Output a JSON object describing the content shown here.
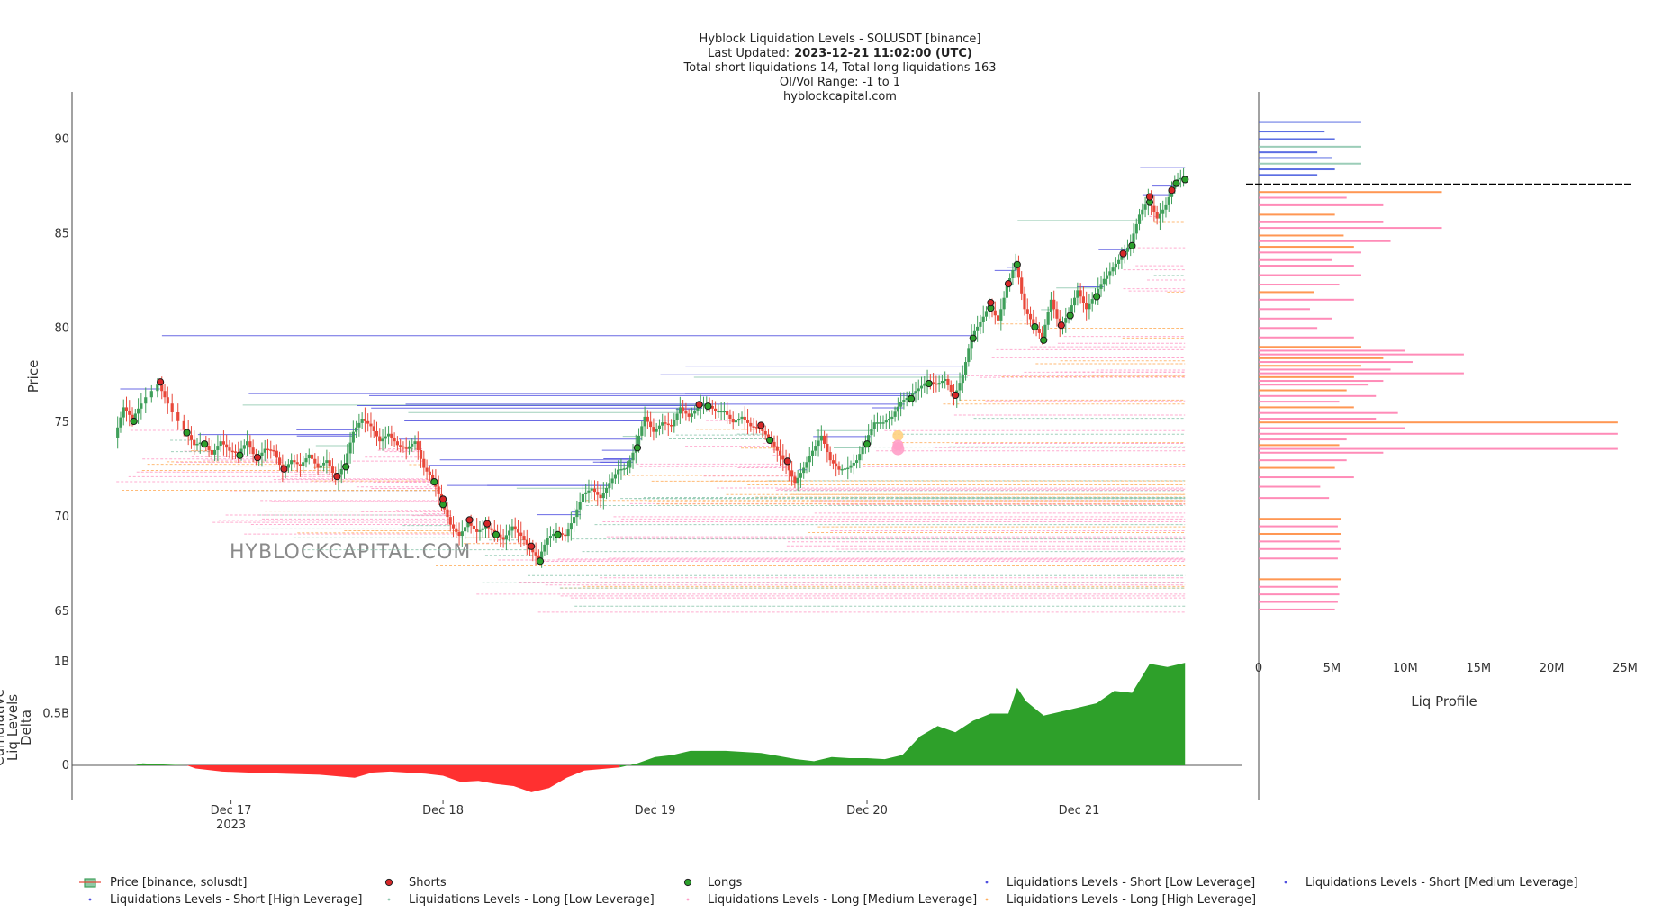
{
  "title": {
    "line1": "Hyblock Liquidation Levels - SOLUSDT [binance]",
    "line2_label": "Last Updated:",
    "line2_value": "2023-12-21 11:02:00 (UTC)",
    "line3": "Total short liquidations 14, Total long liquidations 163",
    "line4": "OI/Vol Range: -1 to 1",
    "line5": "hyblockcapital.com"
  },
  "watermark": "HYBLOCKCAPITAL.COM",
  "colors": {
    "price_up": "#3f9f5a",
    "price_down": "#e8483a",
    "shorts": "#d62728",
    "longs": "#2ca02c",
    "short_liq": "#5050e0",
    "long_liq_low": "#90c8b0",
    "long_liq_medium": "#ff9ec8",
    "long_liq_high": "#ffb060",
    "delta_pos": "#2ea02a",
    "delta_neg": "#ff3030",
    "profile_orange": "#ff8c40",
    "profile_pink": "#ff80b0",
    "profile_blue": "#4a5ee0",
    "profile_teal": "#90c8b0"
  },
  "chart_data": [
    {
      "type": "line",
      "name": "Price",
      "ylabel": "Price",
      "ylim": [
        64,
        92.5
      ],
      "yticks": [
        65,
        70,
        75,
        80,
        85,
        90
      ],
      "xticks": [
        {
          "t": 0,
          "label": "Dec 17",
          "sublabel": "2023"
        },
        {
          "t": 24,
          "label": "Dec 18",
          "sublabel": ""
        },
        {
          "t": 48,
          "label": "Dec 19",
          "sublabel": ""
        },
        {
          "t": 72,
          "label": "Dec 20",
          "sublabel": ""
        },
        {
          "t": 96,
          "label": "Dec 21",
          "sublabel": ""
        }
      ],
      "xrange": [
        -18.0,
        114.5
      ],
      "price_series": [
        [
          -13,
          74.2
        ],
        [
          -12,
          75.8
        ],
        [
          -11,
          75.2
        ],
        [
          -10,
          76.0
        ],
        [
          -8,
          77.0
        ],
        [
          -7,
          76.0
        ],
        [
          -5,
          74.6
        ],
        [
          -4,
          73.8
        ],
        [
          -3,
          74.0
        ],
        [
          -2,
          73.3
        ],
        [
          -1,
          74.0
        ],
        [
          0,
          73.5
        ],
        [
          1,
          73.4
        ],
        [
          2,
          74.0
        ],
        [
          3,
          73.0
        ],
        [
          4,
          73.6
        ],
        [
          5,
          73.5
        ],
        [
          6,
          72.4
        ],
        [
          7,
          73.0
        ],
        [
          8,
          72.7
        ],
        [
          9,
          73.3
        ],
        [
          10,
          72.6
        ],
        [
          11,
          73.0
        ],
        [
          12,
          72.0
        ],
        [
          13,
          72.8
        ],
        [
          14,
          74.5
        ],
        [
          15,
          75.2
        ],
        [
          16,
          74.8
        ],
        [
          17,
          74.0
        ],
        [
          18,
          74.4
        ],
        [
          19,
          73.8
        ],
        [
          20,
          73.6
        ],
        [
          21,
          74.0
        ],
        [
          22,
          72.6
        ],
        [
          23,
          72.0
        ],
        [
          24,
          70.8
        ],
        [
          25,
          69.6
        ],
        [
          26,
          69.0
        ],
        [
          27,
          69.7
        ],
        [
          28,
          69.2
        ],
        [
          29,
          69.5
        ],
        [
          30,
          69.2
        ],
        [
          31,
          68.8
        ],
        [
          32,
          69.5
        ],
        [
          33,
          69.0
        ],
        [
          34,
          68.3
        ],
        [
          35,
          67.8
        ],
        [
          36,
          68.9
        ],
        [
          37,
          69.2
        ],
        [
          38,
          69.0
        ],
        [
          39,
          70.0
        ],
        [
          40,
          71.2
        ],
        [
          41,
          71.5
        ],
        [
          42,
          71.0
        ],
        [
          43,
          71.8
        ],
        [
          44,
          72.5
        ],
        [
          45,
          72.6
        ],
        [
          46,
          73.8
        ],
        [
          47,
          75.3
        ],
        [
          48,
          74.5
        ],
        [
          49,
          75.0
        ],
        [
          50,
          74.8
        ],
        [
          51,
          75.8
        ],
        [
          52,
          75.3
        ],
        [
          53,
          75.8
        ],
        [
          54,
          76.0
        ],
        [
          55,
          75.6
        ],
        [
          56,
          75.6
        ],
        [
          57,
          75.0
        ],
        [
          58,
          75.3
        ],
        [
          59,
          74.8
        ],
        [
          60,
          74.7
        ],
        [
          61,
          74.2
        ],
        [
          62,
          73.5
        ],
        [
          63,
          72.8
        ],
        [
          64,
          71.8
        ],
        [
          65,
          72.6
        ],
        [
          66,
          73.5
        ],
        [
          67,
          74.3
        ],
        [
          68,
          73.0
        ],
        [
          69,
          72.5
        ],
        [
          70,
          72.6
        ],
        [
          71,
          73.0
        ],
        [
          72,
          74.0
        ],
        [
          73,
          75.0
        ],
        [
          74,
          75.0
        ],
        [
          75,
          75.3
        ],
        [
          76,
          76.1
        ],
        [
          77,
          76.4
        ],
        [
          78,
          76.8
        ],
        [
          79,
          77.2
        ],
        [
          80,
          77.0
        ],
        [
          81,
          77.3
        ],
        [
          82,
          76.3
        ],
        [
          83,
          77.5
        ],
        [
          84,
          79.6
        ],
        [
          85,
          80.3
        ],
        [
          86,
          81.2
        ],
        [
          87,
          80.4
        ],
        [
          88,
          82.2
        ],
        [
          89,
          83.5
        ],
        [
          90,
          81.0
        ],
        [
          91,
          80.2
        ],
        [
          92,
          79.5
        ],
        [
          93,
          81.5
        ],
        [
          94,
          80.0
        ],
        [
          95,
          80.8
        ],
        [
          96,
          82.0
        ],
        [
          97,
          81.0
        ],
        [
          98,
          81.8
        ],
        [
          99,
          82.6
        ],
        [
          100,
          83.2
        ],
        [
          101,
          83.8
        ],
        [
          102,
          84.5
        ],
        [
          103,
          86.0
        ],
        [
          104,
          86.8
        ],
        [
          105,
          85.8
        ],
        [
          106,
          86.5
        ],
        [
          107,
          87.8
        ],
        [
          108,
          88.0
        ]
      ],
      "shorts_x": [
        -8,
        3,
        6,
        12,
        24,
        27,
        29,
        34,
        53,
        60,
        63,
        82,
        86,
        88,
        94,
        101,
        104,
        106.5
      ],
      "longs_x": [
        -11,
        -5,
        -3,
        1,
        13,
        23,
        24,
        30,
        35,
        37,
        46,
        54,
        61,
        72,
        77,
        79,
        84,
        86,
        89,
        91,
        92,
        95,
        98,
        102,
        104,
        107,
        108
      ],
      "big_markers": [
        {
          "x": 75.5,
          "y": 74.3,
          "r": 6,
          "c": "#ffd080"
        },
        {
          "x": 75.5,
          "y": 73.8,
          "r": 6,
          "c": "#ff9ec8"
        },
        {
          "x": 75.5,
          "y": 73.6,
          "r": 7,
          "c": "#ff9ec8"
        }
      ]
    },
    {
      "type": "area",
      "name": "Cumulative Liq Levels Delta",
      "ylabel": "Cumulative Liq Levels Delta",
      "ylim": [
        -0.28,
        1.05
      ],
      "ytick_labels": [
        "1B",
        "0.5B",
        "0"
      ],
      "yticks": [
        1.0,
        0.5,
        0.0
      ],
      "delta_series": [
        [
          -13,
          0.0
        ],
        [
          -11,
          0.0
        ],
        [
          -10,
          0.02
        ],
        [
          -8,
          0.01
        ],
        [
          -5,
          0.0
        ],
        [
          -4,
          -0.03
        ],
        [
          -1,
          -0.06
        ],
        [
          2,
          -0.07
        ],
        [
          6,
          -0.08
        ],
        [
          10,
          -0.09
        ],
        [
          14,
          -0.12
        ],
        [
          16,
          -0.07
        ],
        [
          18,
          -0.06
        ],
        [
          22,
          -0.08
        ],
        [
          24,
          -0.1
        ],
        [
          26,
          -0.16
        ],
        [
          28,
          -0.15
        ],
        [
          30,
          -0.18
        ],
        [
          32,
          -0.2
        ],
        [
          34,
          -0.26
        ],
        [
          36,
          -0.22
        ],
        [
          38,
          -0.12
        ],
        [
          40,
          -0.05
        ],
        [
          44,
          -0.02
        ],
        [
          46,
          0.02
        ],
        [
          48,
          0.08
        ],
        [
          50,
          0.1
        ],
        [
          52,
          0.14
        ],
        [
          56,
          0.14
        ],
        [
          60,
          0.12
        ],
        [
          62,
          0.09
        ],
        [
          64,
          0.06
        ],
        [
          66,
          0.04
        ],
        [
          68,
          0.08
        ],
        [
          70,
          0.07
        ],
        [
          72,
          0.07
        ],
        [
          74,
          0.06
        ],
        [
          76,
          0.1
        ],
        [
          78,
          0.28
        ],
        [
          80,
          0.38
        ],
        [
          82,
          0.32
        ],
        [
          84,
          0.43
        ],
        [
          86,
          0.5
        ],
        [
          88,
          0.5
        ],
        [
          89,
          0.75
        ],
        [
          90,
          0.62
        ],
        [
          92,
          0.48
        ],
        [
          94,
          0.52
        ],
        [
          96,
          0.56
        ],
        [
          98,
          0.6
        ],
        [
          100,
          0.72
        ],
        [
          102,
          0.7
        ],
        [
          104,
          0.98
        ],
        [
          106,
          0.95
        ],
        [
          108,
          0.99
        ]
      ]
    },
    {
      "type": "bar",
      "name": "Liq Profile",
      "xlabel": "Liq Profile",
      "xlim": [
        0,
        25000000
      ],
      "xticks": [
        0,
        5000000,
        10000000,
        15000000,
        20000000,
        25000000
      ],
      "xtick_labels": [
        "0",
        "5M",
        "10M",
        "15M",
        "20M",
        "25M"
      ],
      "current_price": 87.6,
      "bars": [
        {
          "y": 90.9,
          "v": 7000000,
          "c": "blue"
        },
        {
          "y": 90.4,
          "v": 4500000,
          "c": "blue"
        },
        {
          "y": 90.0,
          "v": 5200000,
          "c": "blue"
        },
        {
          "y": 89.6,
          "v": 7000000,
          "c": "teal"
        },
        {
          "y": 89.3,
          "v": 4000000,
          "c": "blue"
        },
        {
          "y": 89.0,
          "v": 5000000,
          "c": "blue"
        },
        {
          "y": 88.7,
          "v": 7000000,
          "c": "teal"
        },
        {
          "y": 88.4,
          "v": 5200000,
          "c": "blue"
        },
        {
          "y": 88.1,
          "v": 4000000,
          "c": "blue"
        },
        {
          "y": 87.2,
          "v": 12500000,
          "c": "orange"
        },
        {
          "y": 86.9,
          "v": 6000000,
          "c": "pink"
        },
        {
          "y": 86.5,
          "v": 8500000,
          "c": "pink"
        },
        {
          "y": 86.0,
          "v": 5200000,
          "c": "orange"
        },
        {
          "y": 85.6,
          "v": 8500000,
          "c": "pink"
        },
        {
          "y": 85.3,
          "v": 12500000,
          "c": "pink"
        },
        {
          "y": 84.9,
          "v": 5800000,
          "c": "orange"
        },
        {
          "y": 84.6,
          "v": 9000000,
          "c": "pink"
        },
        {
          "y": 84.3,
          "v": 6500000,
          "c": "orange"
        },
        {
          "y": 84.0,
          "v": 7000000,
          "c": "pink"
        },
        {
          "y": 83.6,
          "v": 5000000,
          "c": "pink"
        },
        {
          "y": 83.3,
          "v": 6500000,
          "c": "pink"
        },
        {
          "y": 82.8,
          "v": 7000000,
          "c": "pink"
        },
        {
          "y": 82.3,
          "v": 5500000,
          "c": "pink"
        },
        {
          "y": 81.9,
          "v": 3800000,
          "c": "orange"
        },
        {
          "y": 81.5,
          "v": 6500000,
          "c": "pink"
        },
        {
          "y": 81.0,
          "v": 3500000,
          "c": "pink"
        },
        {
          "y": 80.5,
          "v": 5000000,
          "c": "pink"
        },
        {
          "y": 80.0,
          "v": 4000000,
          "c": "pink"
        },
        {
          "y": 79.5,
          "v": 6500000,
          "c": "pink"
        },
        {
          "y": 79.0,
          "v": 7000000,
          "c": "orange"
        },
        {
          "y": 78.8,
          "v": 10000000,
          "c": "pink"
        },
        {
          "y": 78.6,
          "v": 14000000,
          "c": "pink"
        },
        {
          "y": 78.4,
          "v": 8500000,
          "c": "orange"
        },
        {
          "y": 78.2,
          "v": 10500000,
          "c": "pink"
        },
        {
          "y": 78.0,
          "v": 7000000,
          "c": "orange"
        },
        {
          "y": 77.8,
          "v": 9000000,
          "c": "pink"
        },
        {
          "y": 77.6,
          "v": 14000000,
          "c": "pink"
        },
        {
          "y": 77.4,
          "v": 6500000,
          "c": "orange"
        },
        {
          "y": 77.2,
          "v": 8500000,
          "c": "pink"
        },
        {
          "y": 77.0,
          "v": 7500000,
          "c": "pink"
        },
        {
          "y": 76.7,
          "v": 6000000,
          "c": "orange"
        },
        {
          "y": 76.4,
          "v": 8000000,
          "c": "pink"
        },
        {
          "y": 76.1,
          "v": 5500000,
          "c": "pink"
        },
        {
          "y": 75.8,
          "v": 6500000,
          "c": "orange"
        },
        {
          "y": 75.5,
          "v": 9500000,
          "c": "pink"
        },
        {
          "y": 75.2,
          "v": 8000000,
          "c": "pink"
        },
        {
          "y": 75.0,
          "v": 24500000,
          "c": "orange"
        },
        {
          "y": 74.7,
          "v": 10000000,
          "c": "pink"
        },
        {
          "y": 74.4,
          "v": 24500000,
          "c": "pink"
        },
        {
          "y": 74.1,
          "v": 6000000,
          "c": "pink"
        },
        {
          "y": 73.8,
          "v": 5500000,
          "c": "orange"
        },
        {
          "y": 73.6,
          "v": 24500000,
          "c": "pink"
        },
        {
          "y": 73.4,
          "v": 8500000,
          "c": "pink"
        },
        {
          "y": 73.0,
          "v": 6000000,
          "c": "pink"
        },
        {
          "y": 72.6,
          "v": 5200000,
          "c": "orange"
        },
        {
          "y": 72.1,
          "v": 6500000,
          "c": "pink"
        },
        {
          "y": 71.6,
          "v": 4200000,
          "c": "pink"
        },
        {
          "y": 71.0,
          "v": 4800000,
          "c": "pink"
        },
        {
          "y": 69.9,
          "v": 5600000,
          "c": "orange"
        },
        {
          "y": 69.5,
          "v": 5400000,
          "c": "pink"
        },
        {
          "y": 69.1,
          "v": 5600000,
          "c": "orange"
        },
        {
          "y": 68.7,
          "v": 5500000,
          "c": "pink"
        },
        {
          "y": 68.3,
          "v": 5600000,
          "c": "pink"
        },
        {
          "y": 67.8,
          "v": 5400000,
          "c": "pink"
        },
        {
          "y": 66.7,
          "v": 5600000,
          "c": "orange"
        },
        {
          "y": 66.3,
          "v": 5400000,
          "c": "pink"
        },
        {
          "y": 65.9,
          "v": 5500000,
          "c": "pink"
        },
        {
          "y": 65.5,
          "v": 5400000,
          "c": "pink"
        },
        {
          "y": 65.1,
          "v": 5200000,
          "c": "pink"
        }
      ]
    }
  ],
  "legend": [
    {
      "label": "Price [binance, solusdt]",
      "symbol": "candle"
    },
    {
      "label": "Shorts",
      "symbol": "dot-red"
    },
    {
      "label": "Longs",
      "symbol": "dot-green"
    },
    {
      "label": "Liquidations Levels - Short [Low Leverage]",
      "symbol": "tiny-blue"
    },
    {
      "label": "Liquidations Levels - Short [Medium Leverage]",
      "symbol": "tiny-blue"
    },
    {
      "label": "Liquidations Levels - Short [High Leverage]",
      "symbol": "tiny-blue"
    },
    {
      "label": "Liquidations Levels - Long [Low Leverage]",
      "symbol": "tiny-teal"
    },
    {
      "label": "Liquidations Levels - Long [Medium Leverage]",
      "symbol": "tiny-pink"
    },
    {
      "label": "Liquidations Levels - Long [High Leverage]",
      "symbol": "tiny-orange"
    }
  ]
}
